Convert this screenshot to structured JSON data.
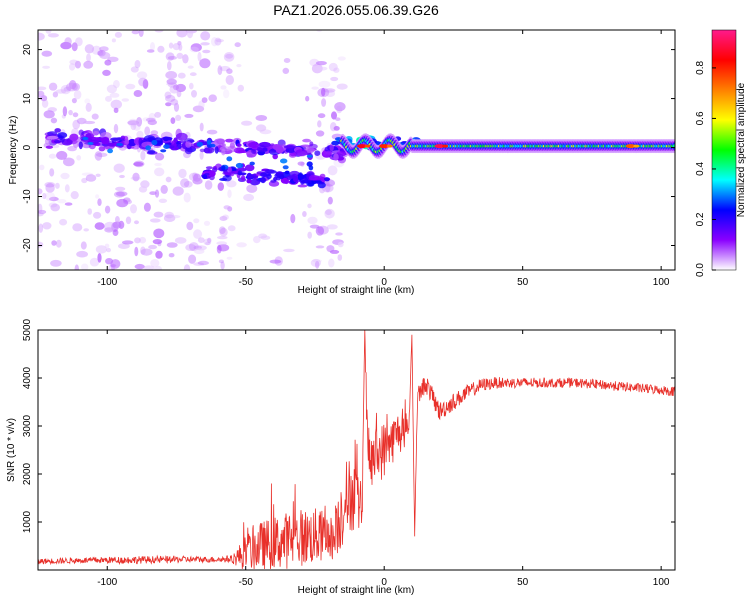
{
  "figure_title": "PAZ1.2026.055.06.39.G26",
  "chart_data": [
    {
      "type": "heatmap",
      "title": "",
      "xlabel": "Height of straight line (km)",
      "ylabel": "Frequency (Hz)",
      "xlim": [
        -125,
        105
      ],
      "ylim": [
        -25,
        24
      ],
      "xticks": [
        -100,
        -50,
        0,
        50,
        100
      ],
      "xtick_labels": [
        "-100",
        "-50",
        "0",
        "50",
        "100"
      ],
      "yticks": [
        -20,
        -10,
        0,
        10,
        20
      ],
      "ytick_labels": [
        "-20",
        "-10",
        "0",
        "10",
        "20"
      ],
      "grid": false,
      "colorbar": {
        "label": "Normalized spectral amplitude",
        "range": [
          0,
          0.95
        ],
        "ticks": [
          0,
          0.2,
          0.4,
          0.6,
          0.8
        ],
        "tick_labels": [
          "0.0",
          "0.2",
          "0.4",
          "0.6",
          "0.8"
        ],
        "colors": [
          "#ffffff",
          "#8a00ff",
          "#0000ff",
          "#00ffff",
          "#00ff00",
          "#ffff00",
          "#ff8000",
          "#ff0000",
          "#ff1a8c"
        ]
      },
      "features": {
        "noise_region_x": [
          -125,
          -20
        ],
        "noise_region_band_y": [
          -7,
          5
        ],
        "signal_region_x": [
          -15,
          105
        ],
        "signal_region_freq": 0,
        "signal_amplitude_range": [
          0.3,
          0.6
        ],
        "peak_x_points": [
          -8,
          0,
          20,
          89
        ],
        "peak_amplitudes": [
          0.85,
          0.8,
          0.9,
          0.75
        ]
      }
    },
    {
      "type": "line",
      "title": "",
      "xlabel": "Height of straight line (km)",
      "ylabel": "SNR (10 * v/v)",
      "xlim": [
        -125,
        105
      ],
      "ylim": [
        0,
        5000
      ],
      "xticks": [
        -100,
        -50,
        0,
        50,
        100
      ],
      "xtick_labels": [
        "-100",
        "-50",
        "0",
        "50",
        "100"
      ],
      "yticks": [
        1000,
        2000,
        3000,
        4000,
        5000
      ],
      "ytick_labels": [
        "1000",
        "2000",
        "3000",
        "4000",
        "5000"
      ],
      "grid": false,
      "series": [
        {
          "color": "#e8302a",
          "x": [
            -125,
            -110,
            -90,
            -75,
            -60,
            -55,
            -50,
            -45,
            -40,
            -35,
            -30,
            -25,
            -20,
            -18,
            -15,
            -12,
            -10,
            -8,
            -7,
            -6,
            -5,
            -3,
            0,
            3,
            5,
            8,
            9,
            10,
            11,
            12,
            15,
            20,
            25,
            30,
            35,
            40,
            45,
            50,
            60,
            70,
            80,
            90,
            100,
            105
          ],
          "y": [
            180,
            200,
            210,
            220,
            220,
            230,
            330,
            500,
            560,
            620,
            680,
            700,
            720,
            600,
            1350,
            1600,
            1500,
            1200,
            5000,
            2400,
            2200,
            2400,
            2500,
            2700,
            2900,
            2700,
            3100,
            4900,
            700,
            3600,
            3900,
            3300,
            3500,
            3700,
            3850,
            3900,
            3900,
            3900,
            3900,
            3900,
            3850,
            3800,
            3750,
            3720
          ],
          "noise_amplitude": [
            60,
            60,
            80,
            70,
            60,
            80,
            400,
            500,
            550,
            600,
            600,
            600,
            500,
            400,
            900,
            800,
            700,
            600,
            0,
            700,
            600,
            600,
            600,
            500,
            400,
            400,
            300,
            0,
            0,
            200,
            200,
            200,
            180,
            160,
            140,
            120,
            110,
            110,
            100,
            100,
            100,
            100,
            100,
            100
          ]
        }
      ]
    }
  ]
}
